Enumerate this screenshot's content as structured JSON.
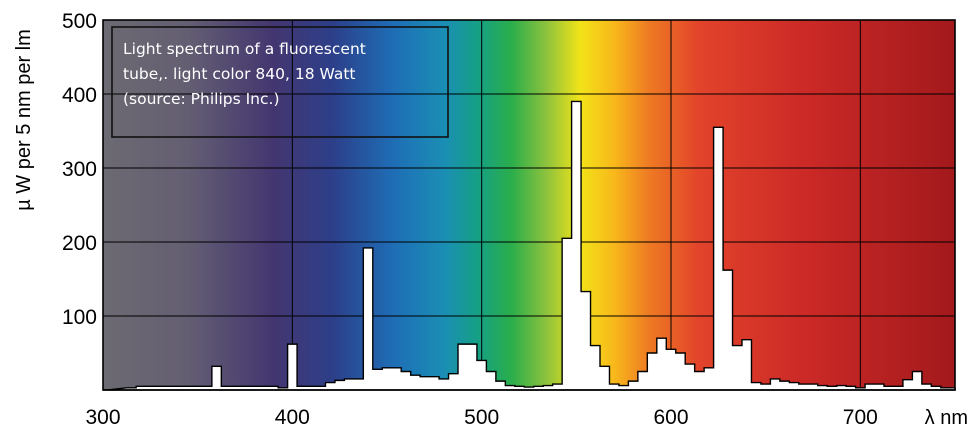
{
  "chart_data": {
    "type": "area",
    "title": "",
    "annotation": [
      "Light spectrum of a fluorescent",
      "tube,. light color  840, 18 Watt",
      "(source: Philips Inc.)"
    ],
    "xlabel": "λ nm",
    "ylabel": "µ W per 5 nm per lm",
    "xlim": [
      300,
      750
    ],
    "ylim": [
      0,
      500
    ],
    "xticks": [
      300,
      400,
      500,
      600,
      700
    ],
    "yticks": [
      100,
      200,
      300,
      400,
      500
    ],
    "grid": true,
    "background": "visible-spectrum gradient",
    "series": [
      {
        "x": [
          300,
          315,
          320,
          325,
          330,
          335,
          340,
          345,
          350,
          355,
          360,
          365,
          370,
          375,
          380,
          385,
          390,
          395,
          400,
          405,
          410,
          415,
          420,
          425,
          430,
          435,
          440,
          445,
          450,
          455,
          460,
          465,
          470,
          475,
          480,
          485,
          490,
          495,
          500,
          505,
          510,
          515,
          520,
          525,
          530,
          535,
          540,
          545,
          550,
          555,
          560,
          565,
          570,
          575,
          580,
          585,
          590,
          595,
          600,
          605,
          610,
          615,
          620,
          625,
          630,
          635,
          640,
          645,
          650,
          655,
          660,
          665,
          670,
          675,
          680,
          685,
          690,
          695,
          700,
          705,
          710,
          715,
          720,
          725,
          730,
          735,
          740,
          745,
          750
        ],
        "values": [
          0,
          3,
          5,
          5,
          5,
          5,
          5,
          5,
          5,
          5,
          32,
          5,
          5,
          5,
          5,
          5,
          5,
          3,
          62,
          5,
          5,
          5,
          10,
          13,
          15,
          15,
          192,
          28,
          30,
          30,
          25,
          20,
          18,
          18,
          15,
          22,
          62,
          62,
          40,
          25,
          12,
          6,
          5,
          4,
          5,
          6,
          8,
          205,
          390,
          133,
          60,
          32,
          8,
          6,
          12,
          25,
          50,
          70,
          55,
          50,
          35,
          25,
          30,
          355,
          162,
          60,
          68,
          10,
          8,
          15,
          12,
          10,
          8,
          8,
          6,
          5,
          6,
          5,
          3,
          8,
          8,
          5,
          5,
          14,
          25,
          8,
          5,
          3,
          3
        ]
      }
    ],
    "colors": {
      "curve_fill": "#ffffff",
      "curve_stroke": "#000000",
      "grid": "#000000",
      "annotation_text": "#ffffff",
      "annotation_border": "#111111"
    }
  }
}
